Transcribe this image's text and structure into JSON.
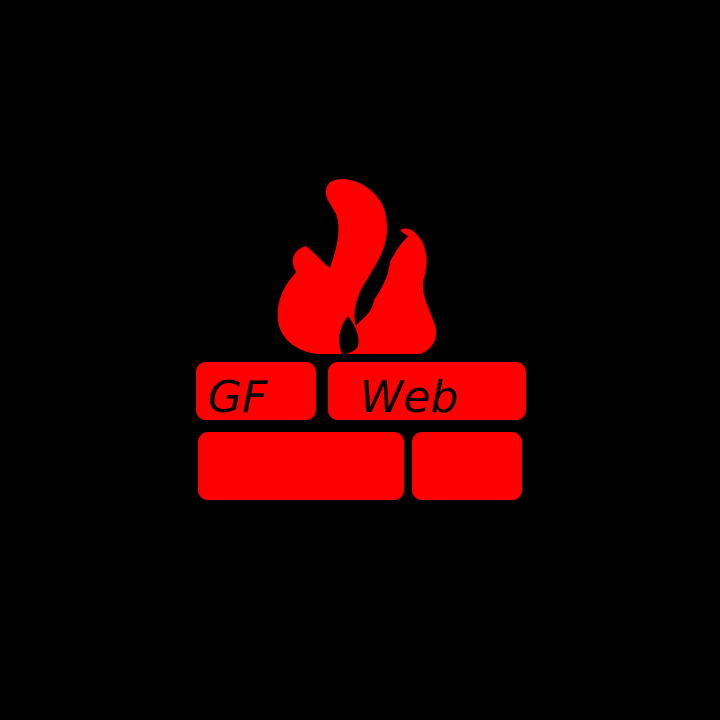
{
  "logo": {
    "text_left": "GF",
    "text_right": "Web",
    "colors": {
      "background": "#000000",
      "brand_red": "#ff0000",
      "text": "#000000"
    },
    "icon": "firewall-flame-icon"
  }
}
